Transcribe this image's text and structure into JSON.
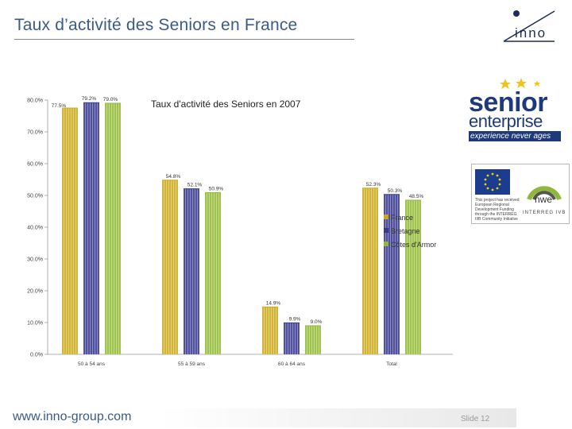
{
  "header": {
    "title": "Taux d’activité des Seniors en France",
    "logo_text": "inno"
  },
  "chart_data": {
    "type": "bar",
    "title": "Taux d'activité des Seniors en 2007",
    "categories": [
      "50 à 54 ans",
      "55 à 59 ans",
      "60 à 64 ans",
      "Total"
    ],
    "series": [
      {
        "name": "France",
        "values": [
          77.5,
          54.8,
          14.9,
          52.3
        ],
        "labels": [
          "77.5%",
          "54.8%",
          "14.9%",
          "52.3%"
        ],
        "color": "#c9a820",
        "fill": "#e4d075"
      },
      {
        "name": "Bretagne",
        "values": [
          79.2,
          52.1,
          9.9,
          50.3
        ],
        "labels": [
          "79.2%",
          "52.1%",
          "9.9%",
          "50.3%"
        ],
        "color": "#3a3a8c",
        "fill": "#8a8ac4"
      },
      {
        "name": "Côtes d'Armor",
        "values": [
          79.0,
          50.9,
          9.0,
          48.5
        ],
        "labels": [
          "79.0%",
          "50.9%",
          "9.0%",
          "48.5%"
        ],
        "color": "#8fb83a",
        "fill": "#c4dc88"
      }
    ],
    "yticks": [
      "0.0%",
      "10.0%",
      "20.0%",
      "30.0%",
      "40.0%",
      "50.0%",
      "60.0%",
      "70.0%",
      "80.0%"
    ],
    "ytick_values": [
      0,
      10,
      20,
      30,
      40,
      50,
      60,
      70,
      80
    ],
    "ylim": [
      0,
      80
    ],
    "legend_position": "right"
  },
  "logos": {
    "senior_line1": "senior",
    "senior_line2": "enterprise",
    "senior_tagline": "experience never ages",
    "eu_text": "This project has received European Regional Development Funding through the INTERREG IIIB Community Initiative",
    "nwe_text": "nwe",
    "interreg_text": "INTERREG IVB"
  },
  "footer": {
    "url": "www.inno-group.com",
    "slide": "Slide  12"
  }
}
